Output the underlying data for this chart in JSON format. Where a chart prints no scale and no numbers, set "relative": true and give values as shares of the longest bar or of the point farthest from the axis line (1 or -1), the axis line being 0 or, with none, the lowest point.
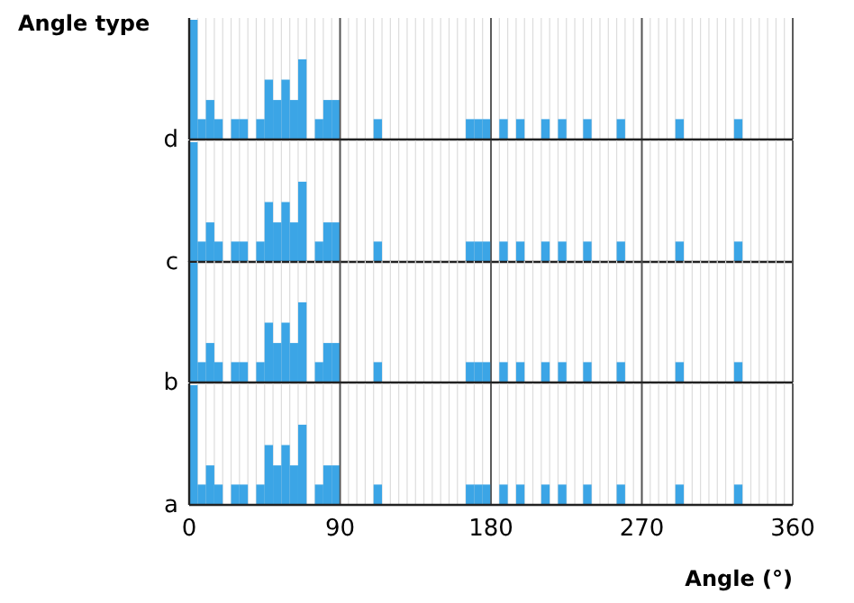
{
  "chart_data": [
    {
      "type": "bar",
      "relative": true,
      "ylabel": "d",
      "annotations": [
        "Angle type"
      ],
      "color": "#3ba5e6",
      "xlim": [
        0,
        360
      ],
      "grid": "x",
      "tick_labels": false,
      "xticks": [
        0,
        {
          "value": 5,
          "label": null
        },
        {
          "value": 10,
          "label": null
        },
        {
          "value": 15,
          "label": null
        },
        {
          "value": 20,
          "label": null
        },
        {
          "value": 25,
          "label": null
        },
        {
          "value": 30,
          "label": null
        },
        {
          "value": 35,
          "label": null
        },
        {
          "value": 40,
          "label": null
        },
        {
          "value": 45,
          "label": null
        },
        {
          "value": 50,
          "label": null
        },
        {
          "value": 55,
          "label": null
        },
        {
          "value": 60,
          "label": null
        },
        {
          "value": 65,
          "label": null
        },
        {
          "value": 70,
          "label": null
        },
        {
          "value": 75,
          "label": null
        },
        {
          "value": 80,
          "label": null
        },
        {
          "value": 85,
          "label": null
        },
        90,
        {
          "value": 95,
          "label": null
        },
        {
          "value": 100,
          "label": null
        },
        {
          "value": 105,
          "label": null
        },
        {
          "value": 110,
          "label": null
        },
        {
          "value": 115,
          "label": null
        },
        {
          "value": 120,
          "label": null
        },
        {
          "value": 125,
          "label": null
        },
        {
          "value": 130,
          "label": null
        },
        {
          "value": 135,
          "label": null
        },
        {
          "value": 140,
          "label": null
        },
        {
          "value": 145,
          "label": null
        },
        {
          "value": 150,
          "label": null
        },
        {
          "value": 155,
          "label": null
        },
        {
          "value": 160,
          "label": null
        },
        {
          "value": 165,
          "label": null
        },
        {
          "value": 170,
          "label": null
        },
        {
          "value": 175,
          "label": null
        },
        180,
        {
          "value": 185,
          "label": null
        },
        {
          "value": 190,
          "label": null
        },
        {
          "value": 195,
          "label": null
        },
        {
          "value": 200,
          "label": null
        },
        {
          "value": 205,
          "label": null
        },
        {
          "value": 210,
          "label": null
        },
        {
          "value": 215,
          "label": null
        },
        {
          "value": 220,
          "label": null
        },
        {
          "value": 225,
          "label": null
        },
        {
          "value": 230,
          "label": null
        },
        {
          "value": 235,
          "label": null
        },
        {
          "value": 240,
          "label": null
        },
        {
          "value": 245,
          "label": null
        },
        {
          "value": 250,
          "label": null
        },
        {
          "value": 255,
          "label": null
        },
        {
          "value": 260,
          "label": null
        },
        {
          "value": 265,
          "label": null
        },
        270,
        {
          "value": 275,
          "label": null
        },
        {
          "value": 280,
          "label": null
        },
        {
          "value": 285,
          "label": null
        },
        {
          "value": 290,
          "label": null
        },
        {
          "value": 295,
          "label": null
        },
        {
          "value": 300,
          "label": null
        },
        {
          "value": 305,
          "label": null
        },
        {
          "value": 310,
          "label": null
        },
        {
          "value": 315,
          "label": null
        },
        {
          "value": 320,
          "label": null
        },
        {
          "value": 325,
          "label": null
        },
        {
          "value": 330,
          "label": null
        },
        {
          "value": 335,
          "label": null
        },
        {
          "value": 340,
          "label": null
        },
        {
          "value": 345,
          "label": null
        },
        {
          "value": 350,
          "label": null
        },
        {
          "value": 355,
          "label": null
        },
        360
      ],
      "x": [
        2.5,
        7.5,
        12.5,
        17.5,
        27.5,
        32.5,
        42.5,
        47.5,
        52.5,
        57.5,
        62.5,
        67.5,
        77.5,
        82.5,
        87.5,
        112.5,
        167.5,
        172.5,
        177.5,
        187.5,
        197.5,
        212.5,
        222.5,
        237.5,
        257.5,
        292.5,
        327.5
      ],
      "values": [
        1,
        0.17,
        0.33,
        0.17,
        0.17,
        0.17,
        0.17,
        0.5,
        0.33,
        0.5,
        0.33,
        0.67,
        0.17,
        0.33,
        0.33,
        0.17,
        0.17,
        0.17,
        0.17,
        0.17,
        0.17,
        0.17,
        0.17,
        0.17,
        0.17,
        0.17,
        0.17
      ]
    },
    {
      "type": "bar",
      "relative": true,
      "ylabel": "c",
      "color": "#3ba5e6",
      "xlim": [
        0,
        360
      ],
      "grid": "x",
      "tick_labels": false,
      "xticks": [
        0,
        {
          "value": 5,
          "label": null
        },
        {
          "value": 10,
          "label": null
        },
        {
          "value": 15,
          "label": null
        },
        {
          "value": 20,
          "label": null
        },
        {
          "value": 25,
          "label": null
        },
        {
          "value": 30,
          "label": null
        },
        {
          "value": 35,
          "label": null
        },
        {
          "value": 40,
          "label": null
        },
        {
          "value": 45,
          "label": null
        },
        {
          "value": 50,
          "label": null
        },
        {
          "value": 55,
          "label": null
        },
        {
          "value": 60,
          "label": null
        },
        {
          "value": 65,
          "label": null
        },
        {
          "value": 70,
          "label": null
        },
        {
          "value": 75,
          "label": null
        },
        {
          "value": 80,
          "label": null
        },
        {
          "value": 85,
          "label": null
        },
        90,
        {
          "value": 95,
          "label": null
        },
        {
          "value": 100,
          "label": null
        },
        {
          "value": 105,
          "label": null
        },
        {
          "value": 110,
          "label": null
        },
        {
          "value": 115,
          "label": null
        },
        {
          "value": 120,
          "label": null
        },
        {
          "value": 125,
          "label": null
        },
        {
          "value": 130,
          "label": null
        },
        {
          "value": 135,
          "label": null
        },
        {
          "value": 140,
          "label": null
        },
        {
          "value": 145,
          "label": null
        },
        {
          "value": 150,
          "label": null
        },
        {
          "value": 155,
          "label": null
        },
        {
          "value": 160,
          "label": null
        },
        {
          "value": 165,
          "label": null
        },
        {
          "value": 170,
          "label": null
        },
        {
          "value": 175,
          "label": null
        },
        180,
        {
          "value": 185,
          "label": null
        },
        {
          "value": 190,
          "label": null
        },
        {
          "value": 195,
          "label": null
        },
        {
          "value": 200,
          "label": null
        },
        {
          "value": 205,
          "label": null
        },
        {
          "value": 210,
          "label": null
        },
        {
          "value": 215,
          "label": null
        },
        {
          "value": 220,
          "label": null
        },
        {
          "value": 225,
          "label": null
        },
        {
          "value": 230,
          "label": null
        },
        {
          "value": 235,
          "label": null
        },
        {
          "value": 240,
          "label": null
        },
        {
          "value": 245,
          "label": null
        },
        {
          "value": 250,
          "label": null
        },
        {
          "value": 255,
          "label": null
        },
        {
          "value": 260,
          "label": null
        },
        {
          "value": 265,
          "label": null
        },
        270,
        {
          "value": 275,
          "label": null
        },
        {
          "value": 280,
          "label": null
        },
        {
          "value": 285,
          "label": null
        },
        {
          "value": 290,
          "label": null
        },
        {
          "value": 295,
          "label": null
        },
        {
          "value": 300,
          "label": null
        },
        {
          "value": 305,
          "label": null
        },
        {
          "value": 310,
          "label": null
        },
        {
          "value": 315,
          "label": null
        },
        {
          "value": 320,
          "label": null
        },
        {
          "value": 325,
          "label": null
        },
        {
          "value": 330,
          "label": null
        },
        {
          "value": 335,
          "label": null
        },
        {
          "value": 340,
          "label": null
        },
        {
          "value": 345,
          "label": null
        },
        {
          "value": 350,
          "label": null
        },
        {
          "value": 355,
          "label": null
        },
        360
      ],
      "x": [
        2.5,
        7.5,
        12.5,
        17.5,
        27.5,
        32.5,
        42.5,
        47.5,
        52.5,
        57.5,
        62.5,
        67.5,
        77.5,
        82.5,
        87.5,
        112.5,
        167.5,
        172.5,
        177.5,
        187.5,
        197.5,
        212.5,
        222.5,
        237.5,
        257.5,
        292.5,
        327.5
      ],
      "values": [
        1,
        0.17,
        0.33,
        0.17,
        0.17,
        0.17,
        0.17,
        0.5,
        0.33,
        0.5,
        0.33,
        0.67,
        0.17,
        0.33,
        0.33,
        0.17,
        0.17,
        0.17,
        0.17,
        0.17,
        0.17,
        0.17,
        0.17,
        0.17,
        0.17,
        0.17,
        0.17
      ]
    },
    {
      "type": "bar",
      "relative": true,
      "ylabel": "b",
      "color": "#3ba5e6",
      "xlim": [
        0,
        360
      ],
      "grid": "x",
      "tick_labels": false,
      "xticks": [
        0,
        {
          "value": 5,
          "label": null
        },
        {
          "value": 10,
          "label": null
        },
        {
          "value": 15,
          "label": null
        },
        {
          "value": 20,
          "label": null
        },
        {
          "value": 25,
          "label": null
        },
        {
          "value": 30,
          "label": null
        },
        {
          "value": 35,
          "label": null
        },
        {
          "value": 40,
          "label": null
        },
        {
          "value": 45,
          "label": null
        },
        {
          "value": 50,
          "label": null
        },
        {
          "value": 55,
          "label": null
        },
        {
          "value": 60,
          "label": null
        },
        {
          "value": 65,
          "label": null
        },
        {
          "value": 70,
          "label": null
        },
        {
          "value": 75,
          "label": null
        },
        {
          "value": 80,
          "label": null
        },
        {
          "value": 85,
          "label": null
        },
        90,
        {
          "value": 95,
          "label": null
        },
        {
          "value": 100,
          "label": null
        },
        {
          "value": 105,
          "label": null
        },
        {
          "value": 110,
          "label": null
        },
        {
          "value": 115,
          "label": null
        },
        {
          "value": 120,
          "label": null
        },
        {
          "value": 125,
          "label": null
        },
        {
          "value": 130,
          "label": null
        },
        {
          "value": 135,
          "label": null
        },
        {
          "value": 140,
          "label": null
        },
        {
          "value": 145,
          "label": null
        },
        {
          "value": 150,
          "label": null
        },
        {
          "value": 155,
          "label": null
        },
        {
          "value": 160,
          "label": null
        },
        {
          "value": 165,
          "label": null
        },
        {
          "value": 170,
          "label": null
        },
        {
          "value": 175,
          "label": null
        },
        180,
        {
          "value": 185,
          "label": null
        },
        {
          "value": 190,
          "label": null
        },
        {
          "value": 195,
          "label": null
        },
        {
          "value": 200,
          "label": null
        },
        {
          "value": 205,
          "label": null
        },
        {
          "value": 210,
          "label": null
        },
        {
          "value": 215,
          "label": null
        },
        {
          "value": 220,
          "label": null
        },
        {
          "value": 225,
          "label": null
        },
        {
          "value": 230,
          "label": null
        },
        {
          "value": 235,
          "label": null
        },
        {
          "value": 240,
          "label": null
        },
        {
          "value": 245,
          "label": null
        },
        {
          "value": 250,
          "label": null
        },
        {
          "value": 255,
          "label": null
        },
        {
          "value": 260,
          "label": null
        },
        {
          "value": 265,
          "label": null
        },
        270,
        {
          "value": 275,
          "label": null
        },
        {
          "value": 280,
          "label": null
        },
        {
          "value": 285,
          "label": null
        },
        {
          "value": 290,
          "label": null
        },
        {
          "value": 295,
          "label": null
        },
        {
          "value": 300,
          "label": null
        },
        {
          "value": 305,
          "label": null
        },
        {
          "value": 310,
          "label": null
        },
        {
          "value": 315,
          "label": null
        },
        {
          "value": 320,
          "label": null
        },
        {
          "value": 325,
          "label": null
        },
        {
          "value": 330,
          "label": null
        },
        {
          "value": 335,
          "label": null
        },
        {
          "value": 340,
          "label": null
        },
        {
          "value": 345,
          "label": null
        },
        {
          "value": 350,
          "label": null
        },
        {
          "value": 355,
          "label": null
        },
        360
      ],
      "x": [
        2.5,
        7.5,
        12.5,
        17.5,
        27.5,
        32.5,
        42.5,
        47.5,
        52.5,
        57.5,
        62.5,
        67.5,
        77.5,
        82.5,
        87.5,
        112.5,
        167.5,
        172.5,
        177.5,
        187.5,
        197.5,
        212.5,
        222.5,
        237.5,
        257.5,
        292.5,
        327.5
      ],
      "values": [
        1,
        0.17,
        0.33,
        0.17,
        0.17,
        0.17,
        0.17,
        0.5,
        0.33,
        0.5,
        0.33,
        0.67,
        0.17,
        0.33,
        0.33,
        0.17,
        0.17,
        0.17,
        0.17,
        0.17,
        0.17,
        0.17,
        0.17,
        0.17,
        0.17,
        0.17,
        0.17
      ]
    },
    {
      "type": "bar",
      "relative": true,
      "ylabel": "a",
      "xlabel": "Angle (°)",
      "color": "#3ba5e6",
      "xlim": [
        0,
        360
      ],
      "grid": "x",
      "tick_labels": "x",
      "xticks": [
        0,
        {
          "value": 5,
          "label": null
        },
        {
          "value": 10,
          "label": null
        },
        {
          "value": 15,
          "label": null
        },
        {
          "value": 20,
          "label": null
        },
        {
          "value": 25,
          "label": null
        },
        {
          "value": 30,
          "label": null
        },
        {
          "value": 35,
          "label": null
        },
        {
          "value": 40,
          "label": null
        },
        {
          "value": 45,
          "label": null
        },
        {
          "value": 50,
          "label": null
        },
        {
          "value": 55,
          "label": null
        },
        {
          "value": 60,
          "label": null
        },
        {
          "value": 65,
          "label": null
        },
        {
          "value": 70,
          "label": null
        },
        {
          "value": 75,
          "label": null
        },
        {
          "value": 80,
          "label": null
        },
        {
          "value": 85,
          "label": null
        },
        90,
        {
          "value": 95,
          "label": null
        },
        {
          "value": 100,
          "label": null
        },
        {
          "value": 105,
          "label": null
        },
        {
          "value": 110,
          "label": null
        },
        {
          "value": 115,
          "label": null
        },
        {
          "value": 120,
          "label": null
        },
        {
          "value": 125,
          "label": null
        },
        {
          "value": 130,
          "label": null
        },
        {
          "value": 135,
          "label": null
        },
        {
          "value": 140,
          "label": null
        },
        {
          "value": 145,
          "label": null
        },
        {
          "value": 150,
          "label": null
        },
        {
          "value": 155,
          "label": null
        },
        {
          "value": 160,
          "label": null
        },
        {
          "value": 165,
          "label": null
        },
        {
          "value": 170,
          "label": null
        },
        {
          "value": 175,
          "label": null
        },
        180,
        {
          "value": 185,
          "label": null
        },
        {
          "value": 190,
          "label": null
        },
        {
          "value": 195,
          "label": null
        },
        {
          "value": 200,
          "label": null
        },
        {
          "value": 205,
          "label": null
        },
        {
          "value": 210,
          "label": null
        },
        {
          "value": 215,
          "label": null
        },
        {
          "value": 220,
          "label": null
        },
        {
          "value": 225,
          "label": null
        },
        {
          "value": 230,
          "label": null
        },
        {
          "value": 235,
          "label": null
        },
        {
          "value": 240,
          "label": null
        },
        {
          "value": 245,
          "label": null
        },
        {
          "value": 250,
          "label": null
        },
        {
          "value": 255,
          "label": null
        },
        {
          "value": 260,
          "label": null
        },
        {
          "value": 265,
          "label": null
        },
        270,
        {
          "value": 275,
          "label": null
        },
        {
          "value": 280,
          "label": null
        },
        {
          "value": 285,
          "label": null
        },
        {
          "value": 290,
          "label": null
        },
        {
          "value": 295,
          "label": null
        },
        {
          "value": 300,
          "label": null
        },
        {
          "value": 305,
          "label": null
        },
        {
          "value": 310,
          "label": null
        },
        {
          "value": 315,
          "label": null
        },
        {
          "value": 320,
          "label": null
        },
        {
          "value": 325,
          "label": null
        },
        {
          "value": 330,
          "label": null
        },
        {
          "value": 335,
          "label": null
        },
        {
          "value": 340,
          "label": null
        },
        {
          "value": 345,
          "label": null
        },
        {
          "value": 350,
          "label": null
        },
        {
          "value": 355,
          "label": null
        },
        360
      ],
      "x": [
        2.5,
        7.5,
        12.5,
        17.5,
        27.5,
        32.5,
        42.5,
        47.5,
        52.5,
        57.5,
        62.5,
        67.5,
        77.5,
        82.5,
        87.5,
        112.5,
        167.5,
        172.5,
        177.5,
        187.5,
        197.5,
        212.5,
        222.5,
        237.5,
        257.5,
        292.5,
        327.5
      ],
      "values": [
        1,
        0.17,
        0.33,
        0.17,
        0.17,
        0.17,
        0.17,
        0.5,
        0.33,
        0.5,
        0.33,
        0.67,
        0.17,
        0.33,
        0.33,
        0.17,
        0.17,
        0.17,
        0.17,
        0.17,
        0.17,
        0.17,
        0.17,
        0.17,
        0.17,
        0.17,
        0.17
      ]
    }
  ]
}
